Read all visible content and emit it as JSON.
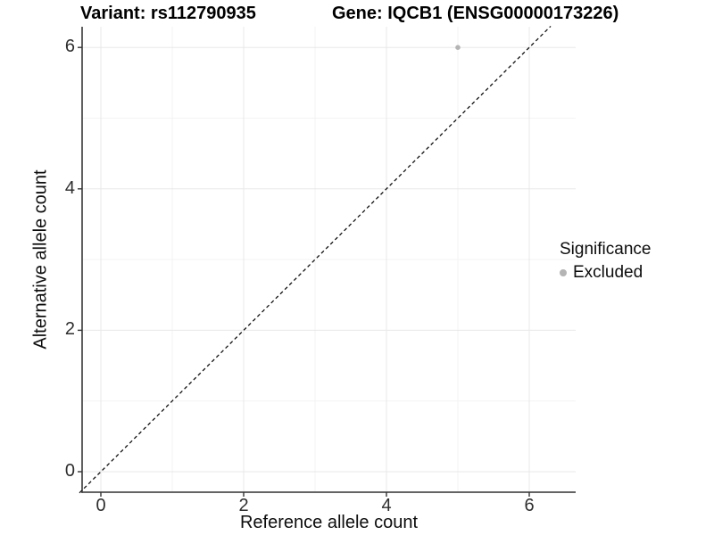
{
  "titles": {
    "left": "Variant: rs112790935",
    "right": "Gene: IQCB1 (ENSG00000173226)"
  },
  "chart_data": {
    "type": "scatter",
    "xlabel": "Reference allele count",
    "ylabel": "Alternative allele count",
    "xlim": [
      -0.3,
      6.3
    ],
    "ylim": [
      -0.3,
      6.3
    ],
    "xticks": [
      0,
      2,
      4,
      6
    ],
    "yticks": [
      0,
      2,
      4,
      6
    ],
    "minor_gridlines": [
      1,
      3,
      5
    ],
    "grid": true,
    "points": [
      {
        "x": 5,
        "y": 6,
        "series": "Excluded"
      }
    ],
    "point_color": "#b4b4b4",
    "reference_line": {
      "type": "identity",
      "style": "dashed",
      "color": "#111111"
    },
    "legend": {
      "title": "Significance",
      "position": "right",
      "items": [
        {
          "label": "Excluded",
          "color": "#b4b4b4"
        }
      ]
    }
  }
}
